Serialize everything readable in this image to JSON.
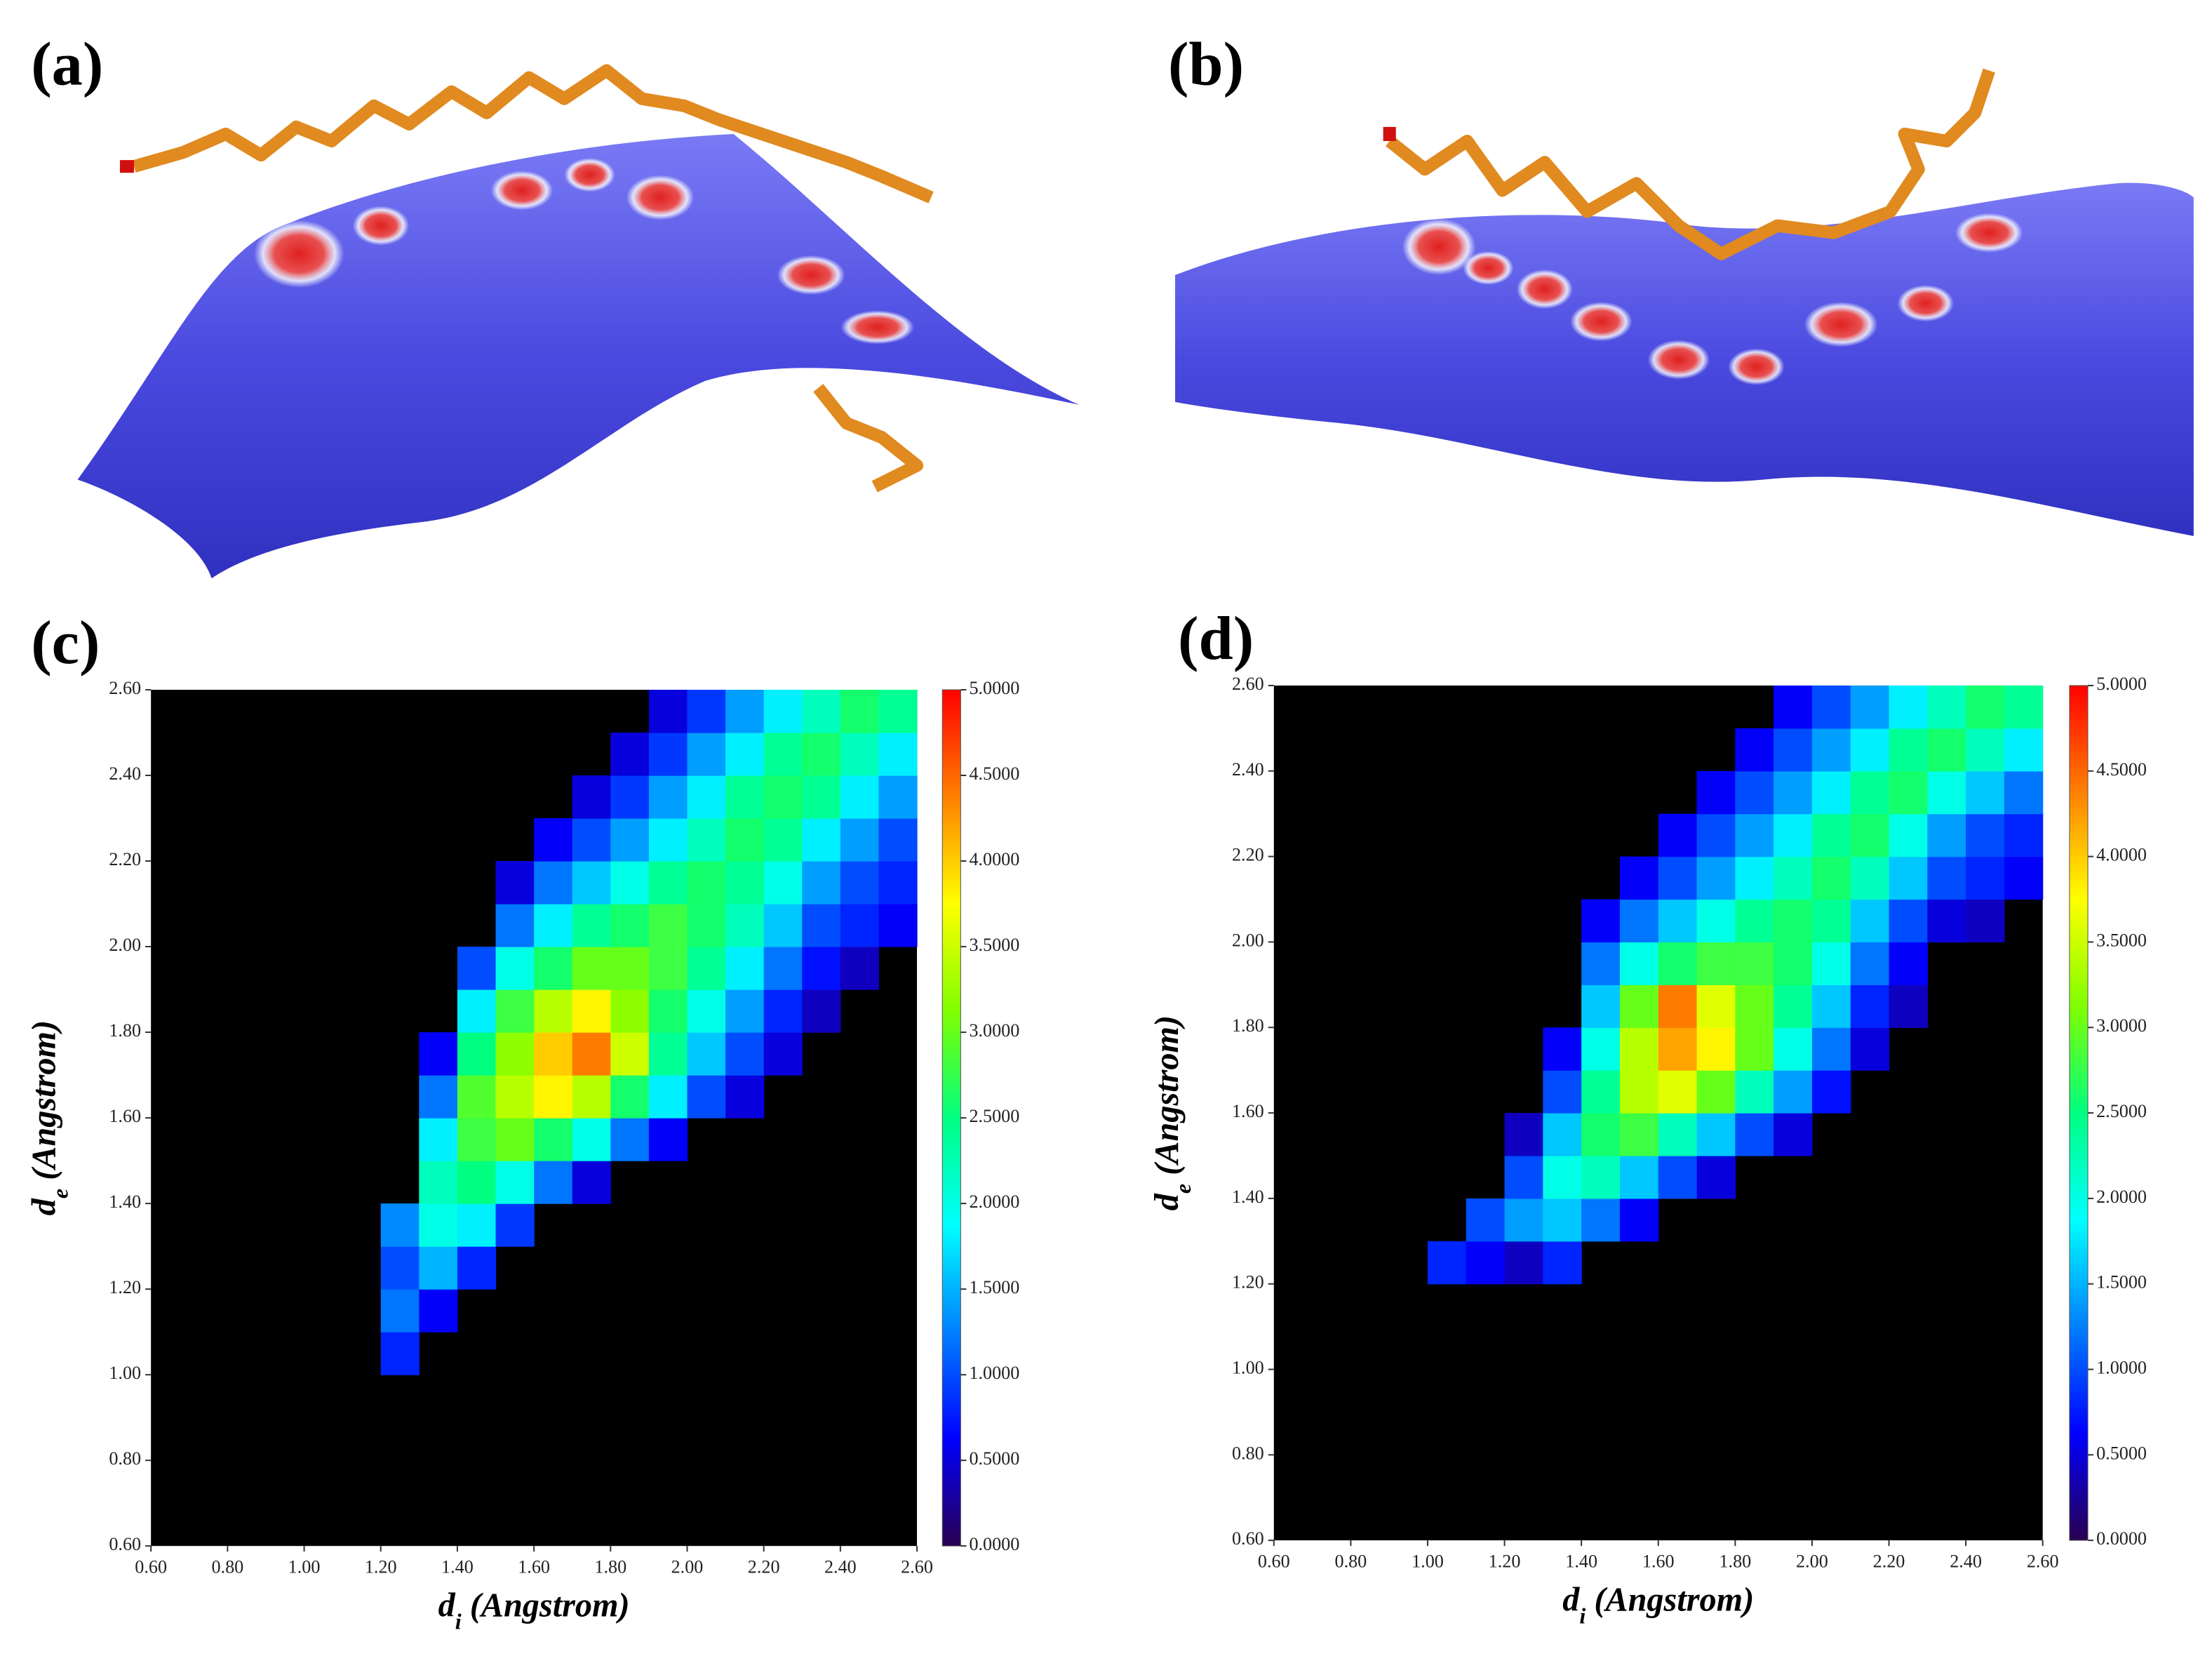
{
  "panel_labels": [
    "(a)",
    "(b)"
  ],
  "chart_data": [
    {
      "type": "heatmap",
      "panel_label": "(c)",
      "xlabel_parts": [
        "d",
        "i",
        "(Angstrom)"
      ],
      "ylabel_parts": [
        "d",
        "e",
        "(Angstrom)"
      ],
      "x": [
        1.25,
        1.35,
        1.45,
        1.55,
        1.65,
        1.75,
        1.85,
        1.95,
        2.05,
        2.15,
        2.25,
        2.35,
        2.45,
        2.55
      ],
      "y": [
        1.05,
        1.15,
        1.25,
        1.35,
        1.45,
        1.55,
        1.65,
        1.75,
        1.85,
        1.95,
        2.05,
        2.15,
        2.25,
        2.35,
        2.45,
        2.55
      ],
      "values": [
        [
          0.8,
          null,
          null,
          null,
          null,
          null,
          null,
          null,
          null,
          null,
          null,
          null,
          null,
          null
        ],
        [
          1.2,
          0.6,
          null,
          null,
          null,
          null,
          null,
          null,
          null,
          null,
          null,
          null,
          null,
          null
        ],
        [
          1.0,
          1.5,
          0.8,
          null,
          null,
          null,
          null,
          null,
          null,
          null,
          null,
          null,
          null,
          null
        ],
        [
          1.3,
          2.0,
          1.8,
          0.9,
          null,
          null,
          null,
          null,
          null,
          null,
          null,
          null,
          null,
          null
        ],
        [
          null,
          2.2,
          2.5,
          2.0,
          1.2,
          0.5,
          null,
          null,
          null,
          null,
          null,
          null,
          null,
          null
        ],
        [
          null,
          1.8,
          2.8,
          3.0,
          2.6,
          2.0,
          1.2,
          0.6,
          null,
          null,
          null,
          null,
          null,
          null
        ],
        [
          null,
          1.2,
          2.9,
          3.4,
          3.8,
          3.4,
          2.6,
          1.8,
          1.0,
          0.5,
          null,
          null,
          null,
          null
        ],
        [
          null,
          0.6,
          2.5,
          3.2,
          4.0,
          4.4,
          3.5,
          2.4,
          1.6,
          1.0,
          0.5,
          null,
          null,
          null
        ],
        [
          null,
          null,
          1.8,
          2.8,
          3.4,
          3.8,
          3.2,
          2.6,
          2.0,
          1.4,
          0.8,
          0.4,
          null,
          null
        ],
        [
          null,
          null,
          1.0,
          2.0,
          2.6,
          3.0,
          3.0,
          2.8,
          2.4,
          1.8,
          1.2,
          0.7,
          0.4,
          null
        ],
        [
          null,
          null,
          null,
          1.2,
          1.8,
          2.4,
          2.6,
          2.8,
          2.6,
          2.2,
          1.6,
          1.0,
          0.8,
          0.6
        ],
        [
          null,
          null,
          null,
          0.5,
          1.2,
          1.6,
          2.0,
          2.4,
          2.6,
          2.4,
          2.0,
          1.4,
          1.0,
          0.8
        ],
        [
          null,
          null,
          null,
          null,
          0.6,
          1.0,
          1.4,
          1.8,
          2.2,
          2.6,
          2.4,
          1.8,
          1.4,
          1.0
        ],
        [
          null,
          null,
          null,
          null,
          null,
          0.5,
          0.9,
          1.4,
          1.8,
          2.4,
          2.6,
          2.4,
          1.8,
          1.4
        ],
        [
          null,
          null,
          null,
          null,
          null,
          null,
          0.5,
          0.9,
          1.4,
          1.8,
          2.4,
          2.6,
          2.2,
          1.8
        ],
        [
          null,
          null,
          null,
          null,
          null,
          null,
          null,
          0.5,
          0.9,
          1.4,
          1.8,
          2.2,
          2.6,
          2.4
        ]
      ],
      "xlim": [
        0.6,
        2.6
      ],
      "ylim": [
        0.6,
        2.6
      ],
      "xticks": [
        {
          "value": 0.6,
          "label": "0.60"
        },
        {
          "value": 0.8,
          "label": "0.80"
        },
        {
          "value": 1.0,
          "label": "1.00"
        },
        {
          "value": 1.2,
          "label": "1.20"
        },
        {
          "value": 1.4,
          "label": "1.40"
        },
        {
          "value": 1.6,
          "label": "1.60"
        },
        {
          "value": 1.8,
          "label": "1.80"
        },
        {
          "value": 2.0,
          "label": "2.00"
        },
        {
          "value": 2.2,
          "label": "2.20"
        },
        {
          "value": 2.4,
          "label": "2.40"
        },
        {
          "value": 2.6,
          "label": "2.60"
        }
      ],
      "yticks": [
        {
          "value": 0.6,
          "label": "0.60"
        },
        {
          "value": 0.8,
          "label": "0.80"
        },
        {
          "value": 1.0,
          "label": "1.00"
        },
        {
          "value": 1.2,
          "label": "1.20"
        },
        {
          "value": 1.4,
          "label": "1.40"
        },
        {
          "value": 1.6,
          "label": "1.60"
        },
        {
          "value": 1.8,
          "label": "1.80"
        },
        {
          "value": 2.0,
          "label": "2.00"
        },
        {
          "value": 2.2,
          "label": "2.20"
        },
        {
          "value": 2.4,
          "label": "2.40"
        },
        {
          "value": 2.6,
          "label": "2.60"
        }
      ],
      "colorbar_lim": [
        0,
        5
      ],
      "colorbar_ticks": [
        {
          "value": 0,
          "label": "0.0000"
        },
        {
          "value": 0.5,
          "label": "0.5000"
        },
        {
          "value": 1,
          "label": "1.0000"
        },
        {
          "value": 1.5,
          "label": "1.5000"
        },
        {
          "value": 2,
          "label": "2.0000"
        },
        {
          "value": 2.5,
          "label": "2.5000"
        },
        {
          "value": 3,
          "label": "3.0000"
        },
        {
          "value": 3.5,
          "label": "3.5000"
        },
        {
          "value": 4,
          "label": "4.0000"
        },
        {
          "value": 4.5,
          "label": "4.5000"
        },
        {
          "value": 5,
          "label": "5.0000"
        }
      ],
      "colormap": [
        "#2a0050",
        "#0000ff",
        "#0080ff",
        "#00ffff",
        "#00ff80",
        "#80ff00",
        "#ffff00",
        "#ff8000",
        "#ff0000"
      ],
      "background": "#000000"
    },
    {
      "type": "heatmap",
      "panel_label": "(d)",
      "xlabel_parts": [
        "d",
        "i",
        "(Angstrom)"
      ],
      "ylabel_parts": [
        "d",
        "e",
        "(Angstrom)"
      ],
      "x": [
        1.05,
        1.15,
        1.25,
        1.35,
        1.45,
        1.55,
        1.65,
        1.75,
        1.85,
        1.95,
        2.05,
        2.15,
        2.25,
        2.35,
        2.45,
        2.55
      ],
      "y": [
        1.25,
        1.35,
        1.45,
        1.55,
        1.65,
        1.75,
        1.85,
        1.95,
        2.05,
        2.15,
        2.25,
        2.35,
        2.45,
        2.55
      ],
      "values": [
        [
          0.8,
          0.6,
          0.4,
          0.8,
          null,
          null,
          null,
          null,
          null,
          null,
          null,
          null,
          null,
          null,
          null,
          null
        ],
        [
          null,
          1.0,
          1.4,
          1.6,
          1.2,
          0.6,
          null,
          null,
          null,
          null,
          null,
          null,
          null,
          null,
          null,
          null
        ],
        [
          null,
          null,
          1.0,
          2.0,
          2.2,
          1.6,
          1.0,
          0.5,
          null,
          null,
          null,
          null,
          null,
          null,
          null,
          null
        ],
        [
          null,
          null,
          0.4,
          1.6,
          2.6,
          2.8,
          2.2,
          1.6,
          1.0,
          0.5,
          null,
          null,
          null,
          null,
          null,
          null
        ],
        [
          null,
          null,
          null,
          1.0,
          2.4,
          3.4,
          3.6,
          3.0,
          2.2,
          1.4,
          0.7,
          null,
          null,
          null,
          null,
          null
        ],
        [
          null,
          null,
          null,
          0.6,
          2.0,
          3.4,
          4.2,
          3.8,
          3.0,
          2.0,
          1.2,
          0.5,
          null,
          null,
          null,
          null
        ],
        [
          null,
          null,
          null,
          null,
          1.6,
          3.0,
          4.4,
          3.6,
          3.0,
          2.4,
          1.6,
          0.8,
          0.4,
          null,
          null,
          null
        ],
        [
          null,
          null,
          null,
          null,
          1.2,
          2.0,
          2.6,
          2.8,
          2.8,
          2.6,
          2.0,
          1.2,
          0.6,
          null,
          null,
          null
        ],
        [
          null,
          null,
          null,
          null,
          0.6,
          1.2,
          1.6,
          2.0,
          2.4,
          2.6,
          2.4,
          1.6,
          1.0,
          0.5,
          0.4,
          null
        ],
        [
          null,
          null,
          null,
          null,
          null,
          0.6,
          1.0,
          1.4,
          1.8,
          2.2,
          2.6,
          2.2,
          1.6,
          1.0,
          0.8,
          0.6
        ],
        [
          null,
          null,
          null,
          null,
          null,
          null,
          0.6,
          1.0,
          1.4,
          1.8,
          2.4,
          2.6,
          2.0,
          1.4,
          1.0,
          0.8
        ],
        [
          null,
          null,
          null,
          null,
          null,
          null,
          null,
          0.6,
          1.0,
          1.4,
          1.8,
          2.4,
          2.6,
          2.0,
          1.6,
          1.2
        ],
        [
          null,
          null,
          null,
          null,
          null,
          null,
          null,
          null,
          0.6,
          1.0,
          1.4,
          1.8,
          2.4,
          2.6,
          2.2,
          1.8
        ],
        [
          null,
          null,
          null,
          null,
          null,
          null,
          null,
          null,
          null,
          0.6,
          1.0,
          1.4,
          1.8,
          2.2,
          2.6,
          2.4
        ]
      ],
      "xlim": [
        0.6,
        2.6
      ],
      "ylim": [
        0.6,
        2.6
      ],
      "xticks": [
        {
          "value": 0.6,
          "label": "0.60"
        },
        {
          "value": 0.8,
          "label": "0.80"
        },
        {
          "value": 1.0,
          "label": "1.00"
        },
        {
          "value": 1.2,
          "label": "1.20"
        },
        {
          "value": 1.4,
          "label": "1.40"
        },
        {
          "value": 1.6,
          "label": "1.60"
        },
        {
          "value": 1.8,
          "label": "1.80"
        },
        {
          "value": 2.0,
          "label": "2.00"
        },
        {
          "value": 2.2,
          "label": "2.20"
        },
        {
          "value": 2.4,
          "label": "2.40"
        },
        {
          "value": 2.6,
          "label": "2.60"
        }
      ],
      "yticks": [
        {
          "value": 0.6,
          "label": "0.60"
        },
        {
          "value": 0.8,
          "label": "0.80"
        },
        {
          "value": 1.0,
          "label": "1.00"
        },
        {
          "value": 1.2,
          "label": "1.20"
        },
        {
          "value": 1.4,
          "label": "1.40"
        },
        {
          "value": 1.6,
          "label": "1.60"
        },
        {
          "value": 1.8,
          "label": "1.80"
        },
        {
          "value": 2.0,
          "label": "2.00"
        },
        {
          "value": 2.2,
          "label": "2.20"
        },
        {
          "value": 2.4,
          "label": "2.40"
        },
        {
          "value": 2.6,
          "label": "2.60"
        }
      ],
      "colorbar_lim": [
        0,
        5
      ],
      "colorbar_ticks": [
        {
          "value": 0,
          "label": "0.0000"
        },
        {
          "value": 0.5,
          "label": "0.5000"
        },
        {
          "value": 1,
          "label": "1.0000"
        },
        {
          "value": 1.5,
          "label": "1.5000"
        },
        {
          "value": 2,
          "label": "2.0000"
        },
        {
          "value": 2.5,
          "label": "2.5000"
        },
        {
          "value": 3,
          "label": "3.0000"
        },
        {
          "value": 3.5,
          "label": "3.5000"
        },
        {
          "value": 4,
          "label": "4.0000"
        },
        {
          "value": 4.5,
          "label": "4.5000"
        },
        {
          "value": 5,
          "label": "5.0000"
        }
      ],
      "colormap": [
        "#2a0050",
        "#0000ff",
        "#0080ff",
        "#00ffff",
        "#00ff80",
        "#80ff00",
        "#ffff00",
        "#ff8000",
        "#ff0000"
      ],
      "background": "#000000"
    }
  ]
}
